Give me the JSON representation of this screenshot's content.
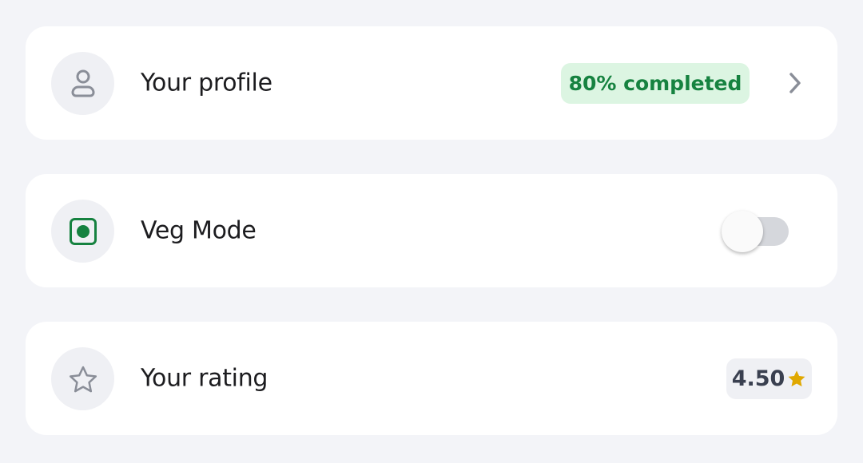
{
  "profile": {
    "label": "Your profile",
    "badge": "80% completed",
    "icon": "user-icon",
    "badge_color": "#168240"
  },
  "veg_mode": {
    "label": "Veg Mode",
    "icon": "veg-icon",
    "enabled": false,
    "icon_color": "#168240"
  },
  "rating": {
    "label": "Your rating",
    "value": "4.50",
    "icon": "star-icon",
    "star_color": "#e0a800"
  }
}
